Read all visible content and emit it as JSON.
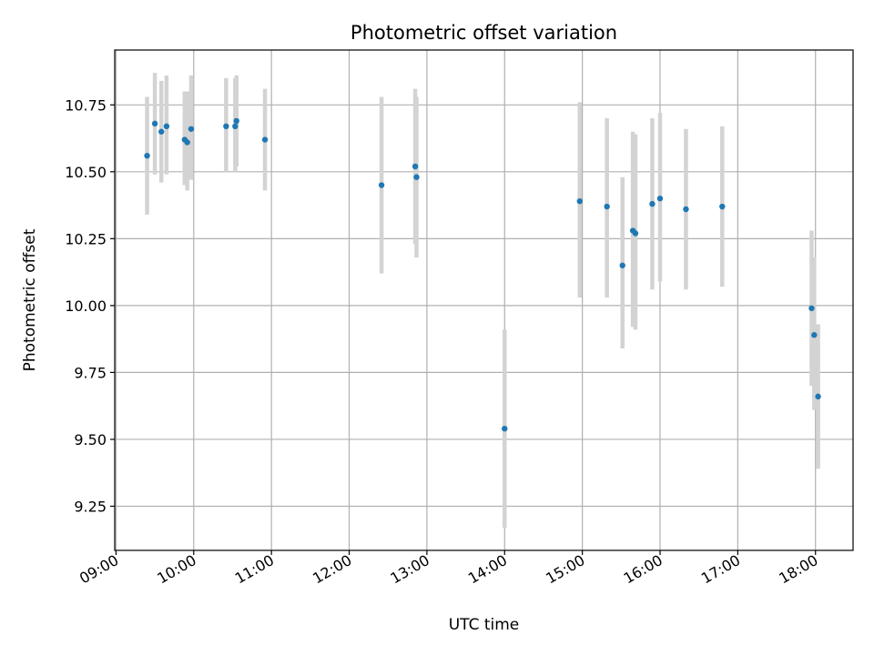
{
  "chart_data": {
    "type": "scatter",
    "title": "Photometric offset variation",
    "xlabel": "UTC time",
    "ylabel": "Photometric offset",
    "x_axis": "time-of-day",
    "xlim": [
      "08:59",
      "18:29"
    ],
    "ylim": [
      9.085,
      10.955
    ],
    "x_ticks": [
      "09:00",
      "10:00",
      "11:00",
      "12:00",
      "13:00",
      "14:00",
      "15:00",
      "16:00",
      "17:00",
      "18:00"
    ],
    "y_ticks": [
      "9.25",
      "9.50",
      "9.75",
      "10.00",
      "10.25",
      "10.50",
      "10.75"
    ],
    "grid": true,
    "marker_color": "#1f77b4",
    "errorbar_color": "#d3d3d3",
    "series": [
      {
        "points": [
          {
            "x": "09:24",
            "y": 10.56,
            "lo": 10.34,
            "hi": 10.78
          },
          {
            "x": "09:30",
            "y": 10.68,
            "lo": 10.49,
            "hi": 10.87
          },
          {
            "x": "09:35",
            "y": 10.65,
            "lo": 10.46,
            "hi": 10.84
          },
          {
            "x": "09:39",
            "y": 10.67,
            "lo": 10.49,
            "hi": 10.86
          },
          {
            "x": "09:53",
            "y": 10.62,
            "lo": 10.45,
            "hi": 10.8
          },
          {
            "x": "09:55",
            "y": 10.61,
            "lo": 10.43,
            "hi": 10.8
          },
          {
            "x": "09:58",
            "y": 10.66,
            "lo": 10.47,
            "hi": 10.86
          },
          {
            "x": "10:25",
            "y": 10.67,
            "lo": 10.5,
            "hi": 10.85
          },
          {
            "x": "10:32",
            "y": 10.67,
            "lo": 10.5,
            "hi": 10.85
          },
          {
            "x": "10:33",
            "y": 10.69,
            "lo": 10.52,
            "hi": 10.86
          },
          {
            "x": "10:55",
            "y": 10.62,
            "lo": 10.43,
            "hi": 10.81
          },
          {
            "x": "12:25",
            "y": 10.45,
            "lo": 10.12,
            "hi": 10.78
          },
          {
            "x": "12:51",
            "y": 10.52,
            "lo": 10.23,
            "hi": 10.81
          },
          {
            "x": "12:52",
            "y": 10.48,
            "lo": 10.18,
            "hi": 10.78
          },
          {
            "x": "14:00",
            "y": 9.54,
            "lo": 9.17,
            "hi": 9.91
          },
          {
            "x": "14:58",
            "y": 10.39,
            "lo": 10.03,
            "hi": 10.76
          },
          {
            "x": "15:19",
            "y": 10.37,
            "lo": 10.03,
            "hi": 10.7
          },
          {
            "x": "15:31",
            "y": 10.15,
            "lo": 9.84,
            "hi": 10.48
          },
          {
            "x": "15:39",
            "y": 10.28,
            "lo": 9.92,
            "hi": 10.65
          },
          {
            "x": "15:41",
            "y": 10.27,
            "lo": 9.91,
            "hi": 10.64
          },
          {
            "x": "15:54",
            "y": 10.38,
            "lo": 10.06,
            "hi": 10.7
          },
          {
            "x": "16:00",
            "y": 10.4,
            "lo": 10.09,
            "hi": 10.72
          },
          {
            "x": "16:20",
            "y": 10.36,
            "lo": 10.06,
            "hi": 10.66
          },
          {
            "x": "16:48",
            "y": 10.37,
            "lo": 10.07,
            "hi": 10.67
          },
          {
            "x": "17:57",
            "y": 9.99,
            "lo": 9.7,
            "hi": 10.28
          },
          {
            "x": "17:59",
            "y": 9.89,
            "lo": 9.61,
            "hi": 10.18
          },
          {
            "x": "18:02",
            "y": 9.66,
            "lo": 9.39,
            "hi": 9.93
          }
        ]
      }
    ]
  }
}
